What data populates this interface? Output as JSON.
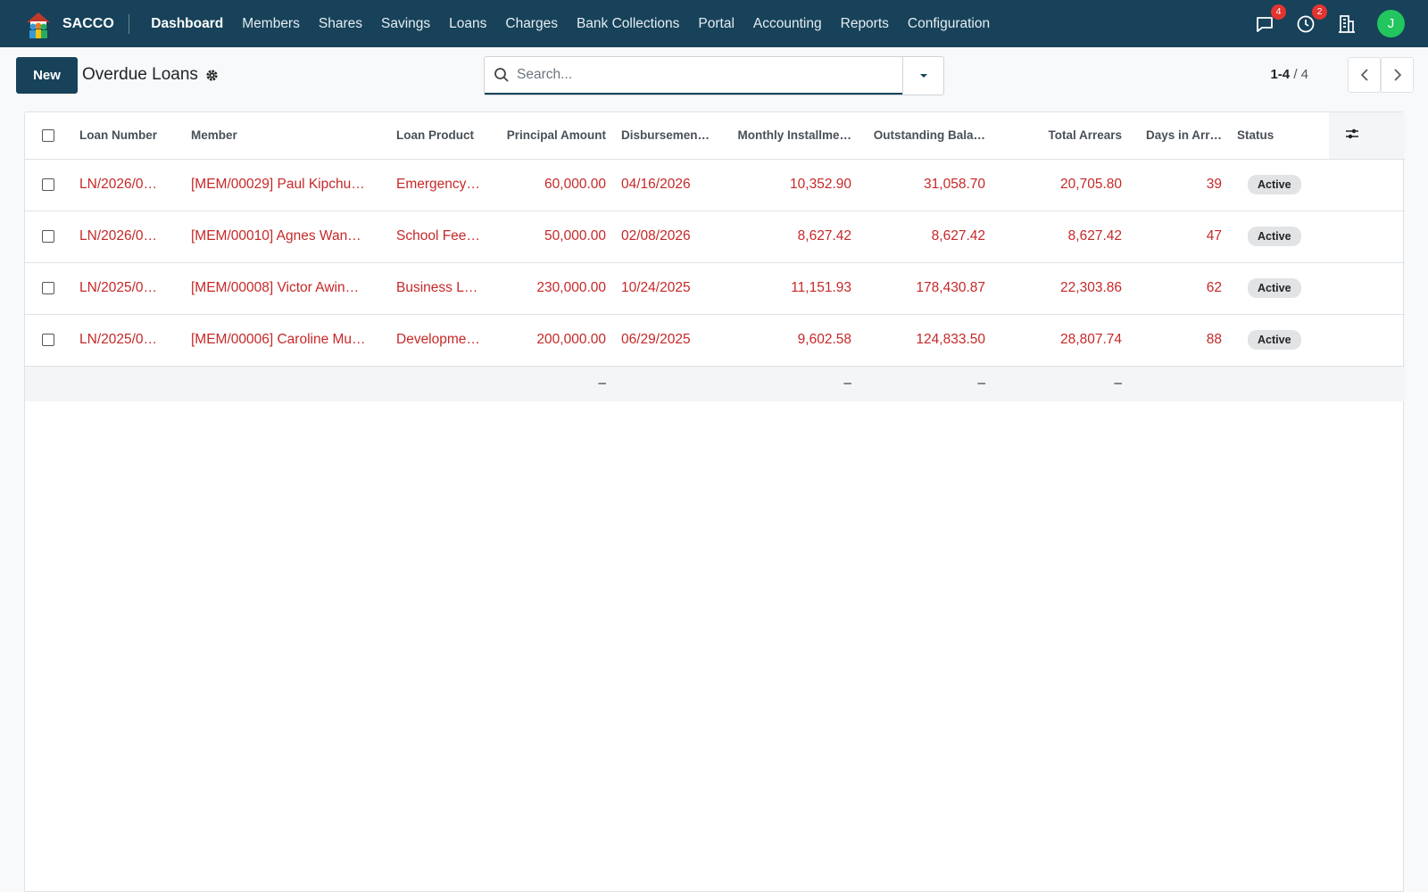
{
  "navbar": {
    "brand": "SACCO",
    "menu": [
      "Dashboard",
      "Members",
      "Shares",
      "Savings",
      "Loans",
      "Charges",
      "Bank Collections",
      "Portal",
      "Accounting",
      "Reports",
      "Configuration"
    ],
    "message_count": "4",
    "activity_count": "2",
    "avatar": "J"
  },
  "control_panel": {
    "new_button": "New",
    "title": "Overdue Loans",
    "search_placeholder": "Search...",
    "pager": {
      "range": "1-4",
      "separator": "/",
      "total": "4"
    }
  },
  "table": {
    "columns": [
      "Loan Number",
      "Member",
      "Loan Product",
      "Principal Amount",
      "Disbursemen…",
      "Monthly Installme…",
      "Outstanding Bala…",
      "Total Arrears",
      "Days in Arr…",
      "Status"
    ],
    "rows": [
      [
        "LN/2026/0…",
        "[MEM/00029] Paul Kipchu…",
        "Emergency…",
        "60,000.00",
        "04/16/2026",
        "10,352.90",
        "31,058.70",
        "20,705.80",
        "39",
        "Active"
      ],
      [
        "LN/2026/0…",
        "[MEM/00010] Agnes Wan…",
        "School Fee…",
        "50,000.00",
        "02/08/2026",
        "8,627.42",
        "8,627.42",
        "8,627.42",
        "47",
        "Active"
      ],
      [
        "LN/2025/0…",
        "[MEM/00008] Victor Awin…",
        "Business L…",
        "230,000.00",
        "10/24/2025",
        "11,151.93",
        "178,430.87",
        "22,303.86",
        "62",
        "Active"
      ],
      [
        "LN/2025/0…",
        "[MEM/00006] Caroline Mu…",
        "Developme…",
        "200,000.00",
        "06/29/2025",
        "9,602.58",
        "124,833.50",
        "28,807.74",
        "88",
        "Active"
      ]
    ],
    "footer": [
      "–",
      "–",
      "–",
      "–"
    ]
  }
}
